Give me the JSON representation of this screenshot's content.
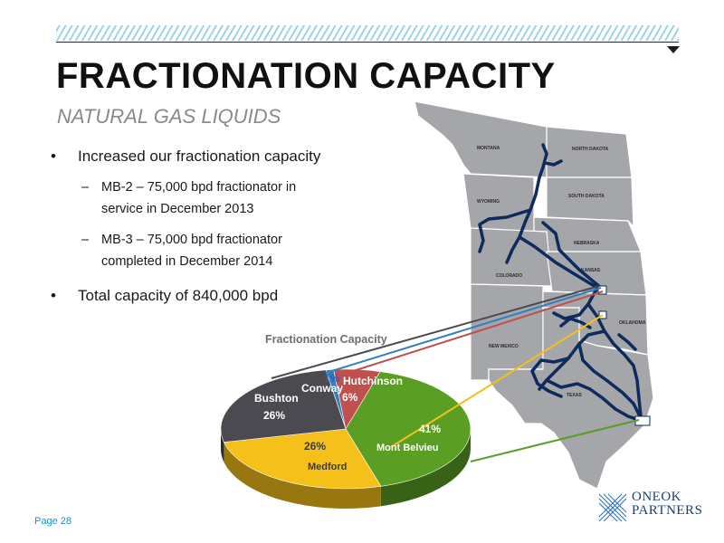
{
  "header": {
    "title": "FRACTIONATION CAPACITY",
    "subtitle": "NATURAL GAS LIQUIDS"
  },
  "bullets": [
    {
      "text": "Increased our fractionation capacity",
      "sub": [
        {
          "line1": "MB-2 – 75,000 bpd fractionator in",
          "line2": "service in December 2013"
        },
        {
          "line1": "MB-3 – 75,000 bpd fractionator",
          "line2": "completed in December 2014"
        }
      ]
    },
    {
      "text": "Total capacity of 840,000 bpd"
    }
  ],
  "chart_data": {
    "type": "pie",
    "title": "Fractionation Capacity",
    "slices": [
      {
        "label": "Conway",
        "value": 1,
        "value_label": "1%",
        "color": "#2f7fc1"
      },
      {
        "label": "Hutchinson",
        "value": 6,
        "value_label": "6%",
        "color": "#c0504d"
      },
      {
        "label": "Mont Belvieu",
        "value": 41,
        "value_label": "41%",
        "color": "#5a9e24"
      },
      {
        "label": "Medford",
        "value": 26,
        "value_label": "26%",
        "color": "#f5c01a"
      },
      {
        "label": "Bushton",
        "value": 26,
        "value_label": "26%",
        "color": "#4a4a50"
      }
    ]
  },
  "map": {
    "states": [
      "MONTANA",
      "NORTH DAKOTA",
      "WYOMING",
      "SOUTH DAKOTA",
      "NEBRASKA",
      "COLORADO",
      "KANSAS",
      "NEW MEXICO",
      "OKLAHOMA",
      "TEXAS"
    ],
    "fill_color": "#a4a6a9",
    "pipeline_color": "#0f2a5c"
  },
  "footer": {
    "page": "Page 28",
    "logo_line1": "ONEOK",
    "logo_line2": "PARTNERS"
  }
}
